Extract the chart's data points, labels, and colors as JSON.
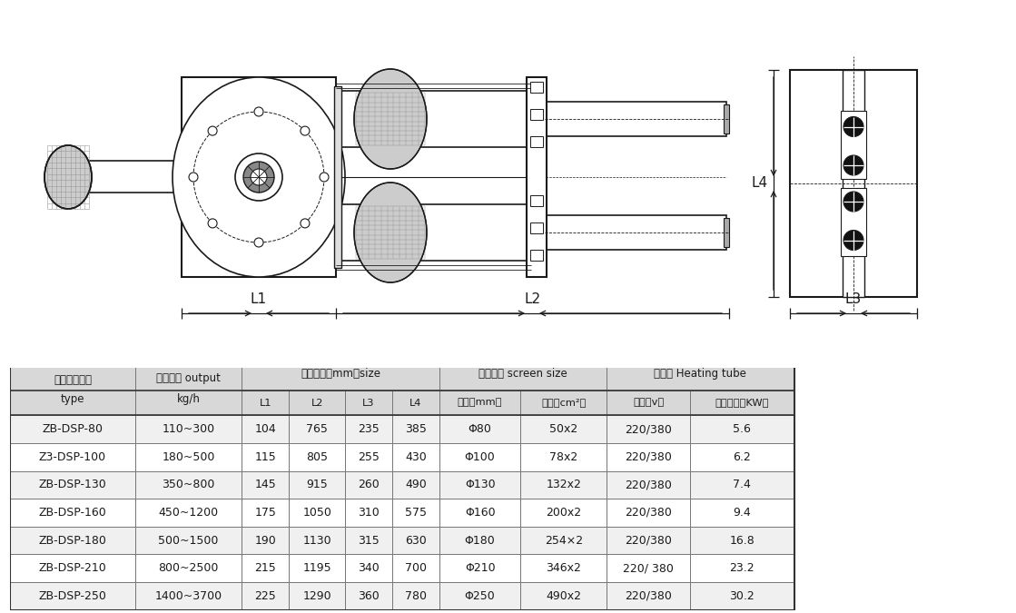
{
  "table_headers_row1_col0": "产品规格型号",
  "table_headers_row1_col0b": "type",
  "table_headers_row1_col1": "适用产量 output",
  "table_headers_row1_col1b": "kg/h",
  "table_headers_row1_col25": "轮廓尺寸（mm）size",
  "table_headers_row1_col67": "滤网尺寸 screen size",
  "table_headers_row1_col89": "加热器 Heating tube",
  "table_headers_row2": [
    "L1",
    "L2",
    "L3",
    "L4",
    "直径（mm）",
    "面积（cm²）",
    "电压（v）",
    "加热功率（KW）"
  ],
  "table_data": [
    [
      "ZB-DSP-80",
      "110~300",
      "104",
      "765",
      "235",
      "385",
      "Φ80",
      "50x2",
      "220/380",
      "5.6"
    ],
    [
      "Z3-DSP-100",
      "180~500",
      "115",
      "805",
      "255",
      "430",
      "Φ100",
      "78x2",
      "220/380",
      "6.2"
    ],
    [
      "ZB-DSP-130",
      "350~800",
      "145",
      "915",
      "260",
      "490",
      "Φ130",
      "132x2",
      "220/380",
      "7.4"
    ],
    [
      "ZB-DSP-160",
      "450~1200",
      "175",
      "1050",
      "310",
      "575",
      "Φ160",
      "200x2",
      "220/380",
      "9.4"
    ],
    [
      "ZB-DSP-180",
      "500~1500",
      "190",
      "1130",
      "315",
      "630",
      "Φ180",
      "254×2",
      "220/380",
      "16.8"
    ],
    [
      "ZB-DSP-210",
      "800~2500",
      "215",
      "1195",
      "340",
      "700",
      "Φ210",
      "346x2",
      "220/ 380",
      "23.2"
    ],
    [
      "ZB-DSP-250",
      "1400~3700",
      "225",
      "1290",
      "360",
      "780",
      "Φ250",
      "490x2",
      "220/380",
      "30.2"
    ]
  ],
  "lc": "#1a1a1a",
  "hdr_bg": "#d8d8d8",
  "row_bg_odd": "#f0f0f0",
  "row_bg_even": "#ffffff"
}
